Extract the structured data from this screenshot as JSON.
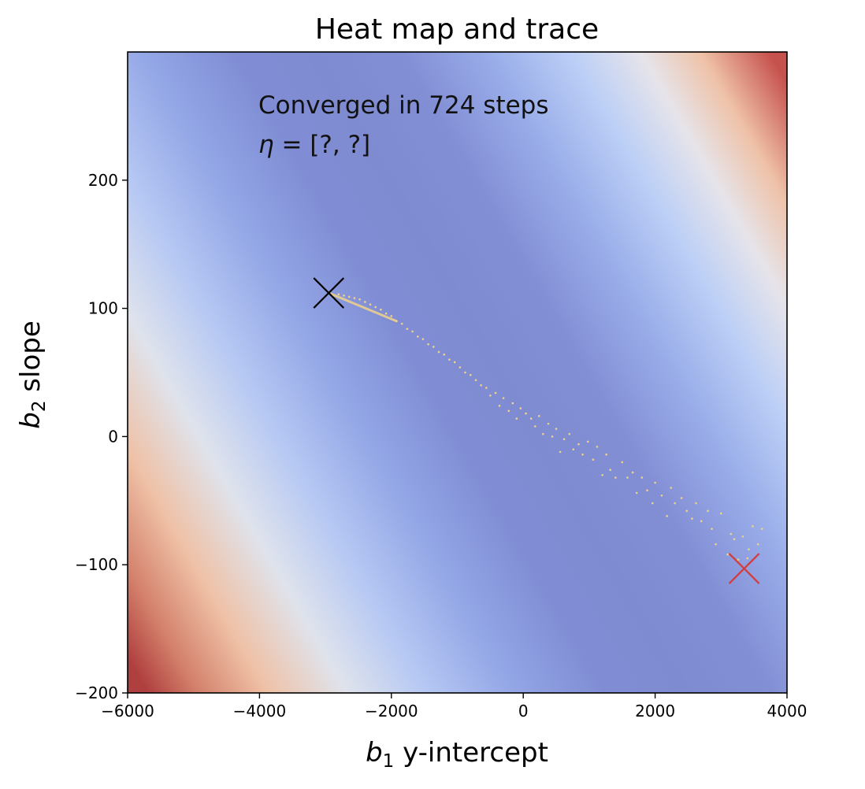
{
  "chart_data": {
    "type": "heatmap",
    "title": "Heat map and trace",
    "xlabel": {
      "var": "b",
      "sub": "1",
      "text": " y-intercept"
    },
    "ylabel": {
      "var": "b",
      "sub": "2",
      "text": " slope"
    },
    "xlim": [
      -6000,
      4000
    ],
    "ylim": [
      -200,
      300
    ],
    "xticks": [
      -6000,
      -4000,
      -2000,
      0,
      2000,
      4000
    ],
    "yticks": [
      -200,
      -100,
      0,
      100,
      200
    ],
    "xtick_labels": [
      "−6000",
      "−4000",
      "−2000",
      "0",
      "2000",
      "4000"
    ],
    "ytick_labels": [
      "−200",
      "−100",
      "0",
      "100",
      "200"
    ],
    "colormap": "coolwarm",
    "colors": {
      "low": "#7f8bd1",
      "mid": "#cdd9f5",
      "high": "#c6524e",
      "trace": "#f0d28a",
      "start_marker": "#d63b3b",
      "end_marker": "#000000"
    },
    "annotations": {
      "line1": "Converged in 724 steps",
      "line2_symbol": "η",
      "line2_value": " = [?, ?]"
    },
    "start_point": {
      "x": 3350,
      "y": -103
    },
    "end_point": {
      "x": -2950,
      "y": 112
    },
    "trace": [
      [
        3620,
        -72
      ],
      [
        3560,
        -84
      ],
      [
        3480,
        -70
      ],
      [
        3420,
        -88
      ],
      [
        3400,
        -95
      ],
      [
        3330,
        -78
      ],
      [
        3260,
        -96
      ],
      [
        3200,
        -80
      ],
      [
        3150,
        -76
      ],
      [
        3100,
        -92
      ],
      [
        3000,
        -60
      ],
      [
        2920,
        -84
      ],
      [
        2860,
        -72
      ],
      [
        2800,
        -58
      ],
      [
        2700,
        -66
      ],
      [
        2620,
        -52
      ],
      [
        2560,
        -64
      ],
      [
        2480,
        -58
      ],
      [
        2400,
        -48
      ],
      [
        2300,
        -52
      ],
      [
        2240,
        -40
      ],
      [
        2180,
        -62
      ],
      [
        2100,
        -46
      ],
      [
        2000,
        -36
      ],
      [
        1960,
        -52
      ],
      [
        1880,
        -42
      ],
      [
        1800,
        -32
      ],
      [
        1720,
        -44
      ],
      [
        1660,
        -28
      ],
      [
        1580,
        -32
      ],
      [
        1500,
        -20
      ],
      [
        1400,
        -32
      ],
      [
        1320,
        -26
      ],
      [
        1260,
        -14
      ],
      [
        1200,
        -30
      ],
      [
        1120,
        -8
      ],
      [
        1060,
        -18
      ],
      [
        980,
        -4
      ],
      [
        900,
        -14
      ],
      [
        840,
        -6
      ],
      [
        760,
        -10
      ],
      [
        700,
        2
      ],
      [
        620,
        -2
      ],
      [
        560,
        -12
      ],
      [
        500,
        6
      ],
      [
        440,
        0
      ],
      [
        380,
        10
      ],
      [
        300,
        2
      ],
      [
        240,
        16
      ],
      [
        180,
        8
      ],
      [
        120,
        14
      ],
      [
        40,
        18
      ],
      [
        -40,
        22
      ],
      [
        -100,
        14
      ],
      [
        -160,
        26
      ],
      [
        -220,
        20
      ],
      [
        -300,
        30
      ],
      [
        -360,
        24
      ],
      [
        -420,
        34
      ],
      [
        -500,
        32
      ],
      [
        -560,
        38
      ],
      [
        -640,
        40
      ],
      [
        -720,
        44
      ],
      [
        -800,
        48
      ],
      [
        -880,
        50
      ],
      [
        -960,
        54
      ],
      [
        -1040,
        58
      ],
      [
        -1120,
        60
      ],
      [
        -1200,
        64
      ],
      [
        -1280,
        66
      ],
      [
        -1360,
        70
      ],
      [
        -1440,
        72
      ],
      [
        -1520,
        76
      ],
      [
        -1600,
        78
      ],
      [
        -1680,
        82
      ],
      [
        -1760,
        84
      ],
      [
        -1840,
        88
      ],
      [
        -1920,
        90
      ],
      [
        -2000,
        94
      ],
      [
        -2080,
        96
      ],
      [
        -2160,
        99
      ],
      [
        -2240,
        101
      ],
      [
        -2320,
        103
      ],
      [
        -2400,
        105
      ],
      [
        -2480,
        107
      ],
      [
        -2560,
        108
      ],
      [
        -2640,
        109
      ],
      [
        -2720,
        110
      ],
      [
        -2800,
        111
      ]
    ]
  }
}
